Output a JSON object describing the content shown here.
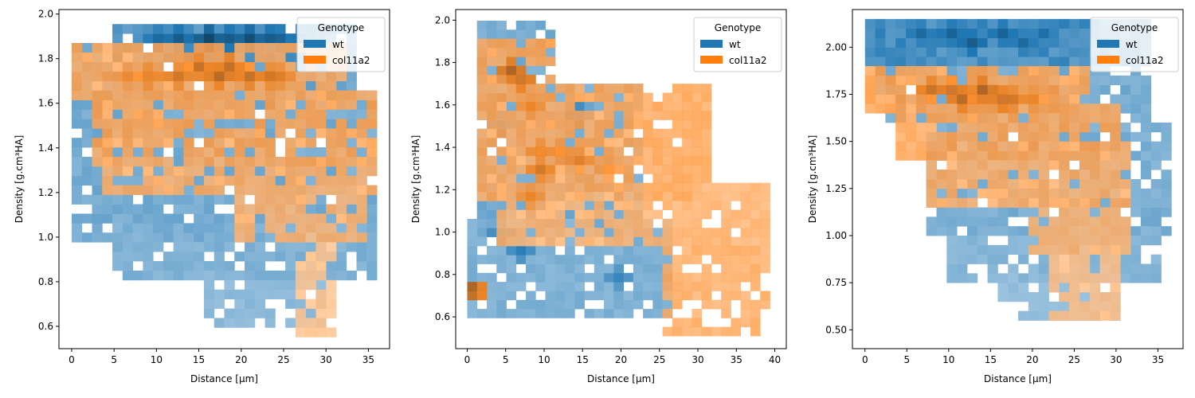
{
  "chart_data": [
    {
      "type": "heatmap",
      "xlabel": "Distance [μm]",
      "ylabel": "Density [g.cm³HA]",
      "xlim": [
        -1.5,
        37.5
      ],
      "ylim": [
        0.5,
        2.02
      ],
      "xticks": [
        0,
        5,
        10,
        15,
        20,
        25,
        30,
        35
      ],
      "yticks": [
        0.6,
        0.8,
        1.0,
        1.2,
        1.4,
        1.6,
        1.8,
        2.0
      ],
      "ytick_labels": [
        "0.6",
        "0.8",
        "1.0",
        "1.2",
        "1.4",
        "1.6",
        "1.8",
        "2.0"
      ],
      "x_bin_width": 1.2,
      "y_bin_width": 0.0425,
      "legend": {
        "title": "Genotype",
        "placement": "top-right"
      },
      "series": [
        {
          "name": "wt",
          "color": "#1f77b4",
          "regions": [
            {
              "x": [
                1,
                36
              ],
              "y": [
                1.0,
                1.62
              ],
              "density": 0.3
            },
            {
              "x": [
                5,
                36
              ],
              "y": [
                0.83,
                1.05
              ],
              "density": 0.25
            },
            {
              "x": [
                16,
                30
              ],
              "y": [
                0.6,
                0.85
              ],
              "density": 0.18
            },
            {
              "x": [
                5,
                33
              ],
              "y": [
                1.82,
                1.94
              ],
              "density": 0.5
            },
            {
              "x": [
                1,
                33
              ],
              "y": [
                1.62,
                1.86
              ],
              "density": 0.35
            }
          ],
          "hotspots": [
            {
              "x": 10.5,
              "y": 1.88,
              "value": 0.7
            },
            {
              "x": 13,
              "y": 1.88,
              "value": 0.8
            },
            {
              "x": 16,
              "y": 1.88,
              "value": 0.95
            },
            {
              "x": 18,
              "y": 1.88,
              "value": 0.8
            },
            {
              "x": 21,
              "y": 1.88,
              "value": 0.9
            },
            {
              "x": 23,
              "y": 1.88,
              "value": 0.8
            },
            {
              "x": 25,
              "y": 1.88,
              "value": 0.75
            },
            {
              "x": 27,
              "y": 1.88,
              "value": 0.6
            }
          ]
        },
        {
          "name": "col11a2",
          "color": "#ff7f0e",
          "regions": [
            {
              "x": [
                0.5,
                32
              ],
              "y": [
                1.62,
                1.86
              ],
              "density": 0.4
            },
            {
              "x": [
                3,
                36
              ],
              "y": [
                1.33,
                1.63
              ],
              "density": 0.42
            },
            {
              "x": [
                4,
                35
              ],
              "y": [
                1.2,
                1.34
              ],
              "density": 0.35
            },
            {
              "x": [
                20,
                34
              ],
              "y": [
                1.0,
                1.22
              ],
              "density": 0.3
            },
            {
              "x": [
                27,
                31
              ],
              "y": [
                0.57,
                0.98
              ],
              "density": 0.15
            }
          ],
          "hotspots": [
            {
              "x": 9,
              "y": 1.72,
              "value": 0.7
            },
            {
              "x": 12,
              "y": 1.72,
              "value": 0.7
            },
            {
              "x": 15,
              "y": 1.78,
              "value": 0.75
            },
            {
              "x": 17,
              "y": 1.74,
              "value": 0.8
            },
            {
              "x": 19,
              "y": 1.78,
              "value": 0.75
            },
            {
              "x": 21,
              "y": 1.72,
              "value": 0.75
            },
            {
              "x": 23,
              "y": 1.72,
              "value": 0.7
            },
            {
              "x": 25,
              "y": 1.72,
              "value": 0.65
            },
            {
              "x": 6,
              "y": 1.72,
              "value": 0.55
            }
          ]
        }
      ]
    },
    {
      "type": "heatmap",
      "xlabel": "Distance [μm]",
      "ylabel": "Density [g.cm³HA]",
      "xlim": [
        -1.5,
        41.5
      ],
      "ylim": [
        0.45,
        2.05
      ],
      "xticks": [
        0,
        5,
        10,
        15,
        20,
        25,
        30,
        35,
        40
      ],
      "yticks": [
        0.6,
        0.8,
        1.0,
        1.2,
        1.4,
        1.6,
        1.8,
        2.0
      ],
      "ytick_labels": [
        "0.6",
        "0.8",
        "1.0",
        "1.2",
        "1.4",
        "1.6",
        "1.8",
        "2.0"
      ],
      "x_bin_width": 1.27,
      "y_bin_width": 0.0425,
      "legend": {
        "title": "Genotype",
        "placement": "top-right"
      },
      "series": [
        {
          "name": "wt",
          "color": "#1f77b4",
          "regions": [
            {
              "x": [
                2,
                11
              ],
              "y": [
                1.7,
                1.96
              ],
              "density": 0.3
            },
            {
              "x": [
                2,
                22
              ],
              "y": [
                1.0,
                1.7
              ],
              "density": 0.3
            },
            {
              "x": [
                1,
                26
              ],
              "y": [
                0.6,
                1.05
              ],
              "density": 0.25
            }
          ],
          "hotspots": [
            {
              "x": 4,
              "y": 1.5,
              "value": 0.6
            },
            {
              "x": 4,
              "y": 1.0,
              "value": 0.55
            },
            {
              "x": 7,
              "y": 0.9,
              "value": 0.55
            },
            {
              "x": 15,
              "y": 1.55,
              "value": 0.6
            },
            {
              "x": 20,
              "y": 0.8,
              "value": 0.5
            }
          ]
        },
        {
          "name": "col11a2",
          "color": "#ff7f0e",
          "regions": [
            {
              "x": [
                2,
                11
              ],
              "y": [
                1.65,
                1.9
              ],
              "density": 0.45
            },
            {
              "x": [
                2,
                31
              ],
              "y": [
                1.15,
                1.66
              ],
              "density": 0.4
            },
            {
              "x": [
                5,
                39
              ],
              "y": [
                0.95,
                1.2
              ],
              "density": 0.3
            },
            {
              "x": [
                26,
                39
              ],
              "y": [
                0.55,
                0.95
              ],
              "density": 0.35
            },
            {
              "x": [
                0.5,
                1.5
              ],
              "y": [
                0.68,
                0.76
              ],
              "density": 0.9
            }
          ],
          "hotspots": [
            {
              "x": 6,
              "y": 1.77,
              "value": 0.85
            },
            {
              "x": 7,
              "y": 1.72,
              "value": 0.8
            },
            {
              "x": 8,
              "y": 1.6,
              "value": 0.6
            },
            {
              "x": 9,
              "y": 1.3,
              "value": 0.7
            },
            {
              "x": 10,
              "y": 1.37,
              "value": 0.65
            },
            {
              "x": 12,
              "y": 1.37,
              "value": 0.6
            },
            {
              "x": 15,
              "y": 1.35,
              "value": 0.65
            },
            {
              "x": 19,
              "y": 1.3,
              "value": 0.55
            },
            {
              "x": 8,
              "y": 1.15,
              "value": 0.6
            }
          ]
        }
      ]
    },
    {
      "type": "heatmap",
      "xlabel": "Distance [μm]",
      "ylabel": "Density [g.cm³HA]",
      "xlim": [
        -1.5,
        38
      ],
      "ylim": [
        0.4,
        2.2
      ],
      "xticks": [
        0,
        5,
        10,
        15,
        20,
        25,
        30,
        35
      ],
      "yticks": [
        0.5,
        0.75,
        1.0,
        1.25,
        1.5,
        1.75,
        2.0
      ],
      "ytick_labels": [
        "0.50",
        "0.75",
        "1.00",
        "1.25",
        "1.50",
        "1.75",
        "2.00"
      ],
      "x_bin_width": 1.22,
      "y_bin_width": 0.05,
      "legend": {
        "title": "Genotype",
        "placement": "top-right"
      },
      "series": [
        {
          "name": "wt",
          "color": "#1f77b4",
          "regions": [
            {
              "x": [
                0.5,
                34
              ],
              "y": [
                1.92,
                2.15
              ],
              "density": 0.55
            },
            {
              "x": [
                2,
                34
              ],
              "y": [
                1.6,
                1.95
              ],
              "density": 0.3
            },
            {
              "x": [
                8,
                36
              ],
              "y": [
                1.0,
                1.6
              ],
              "density": 0.28
            },
            {
              "x": [
                10,
                35
              ],
              "y": [
                0.75,
                1.02
              ],
              "density": 0.22
            },
            {
              "x": [
                16,
                30
              ],
              "y": [
                0.55,
                0.78
              ],
              "density": 0.15
            }
          ],
          "hotspots": [
            {
              "x": 7,
              "y": 2.06,
              "value": 0.7
            },
            {
              "x": 10,
              "y": 2.06,
              "value": 0.75
            },
            {
              "x": 13,
              "y": 2.02,
              "value": 0.8
            },
            {
              "x": 16,
              "y": 2.06,
              "value": 0.75
            },
            {
              "x": 19,
              "y": 2.02,
              "value": 0.7
            },
            {
              "x": 21,
              "y": 2.06,
              "value": 0.65
            }
          ]
        },
        {
          "name": "col11a2",
          "color": "#ff7f0e",
          "regions": [
            {
              "x": [
                0.5,
                26
              ],
              "y": [
                1.68,
                1.88
              ],
              "density": 0.45
            },
            {
              "x": [
                4,
                30
              ],
              "y": [
                1.45,
                1.7
              ],
              "density": 0.42
            },
            {
              "x": [
                8,
                31
              ],
              "y": [
                1.2,
                1.47
              ],
              "density": 0.35
            },
            {
              "x": [
                20,
                31
              ],
              "y": [
                0.95,
                1.22
              ],
              "density": 0.3
            },
            {
              "x": [
                22,
                30
              ],
              "y": [
                0.55,
                0.97
              ],
              "density": 0.18
            }
          ],
          "hotspots": [
            {
              "x": 8,
              "y": 1.78,
              "value": 0.75
            },
            {
              "x": 10,
              "y": 1.78,
              "value": 0.8
            },
            {
              "x": 12,
              "y": 1.74,
              "value": 0.8
            },
            {
              "x": 14,
              "y": 1.78,
              "value": 0.85
            },
            {
              "x": 16,
              "y": 1.74,
              "value": 0.8
            },
            {
              "x": 18,
              "y": 1.74,
              "value": 0.7
            },
            {
              "x": 20,
              "y": 1.7,
              "value": 0.6
            }
          ]
        }
      ]
    }
  ]
}
